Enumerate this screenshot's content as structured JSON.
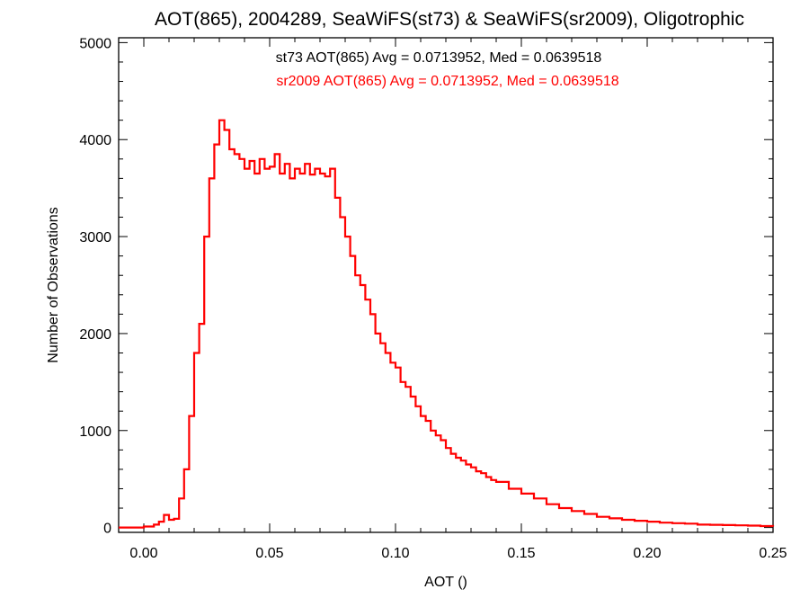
{
  "chart_data": {
    "type": "line",
    "step": true,
    "title": "AOT(865), 2004289, SeaWiFS(st73) & SeaWiFS(sr2009), Oligotrophic",
    "xlabel": "AOT ()",
    "ylabel": "Number of Observations",
    "xlim": [
      -0.01,
      0.25
    ],
    "ylim": [
      -50,
      5050
    ],
    "xticks": [
      0.0,
      0.05,
      0.1,
      0.15,
      0.2,
      0.25
    ],
    "xtick_labels": [
      "0.00",
      "0.05",
      "0.10",
      "0.15",
      "0.20",
      "0.25"
    ],
    "yticks": [
      0,
      1000,
      2000,
      3000,
      4000,
      5000
    ],
    "ytick_labels": [
      "0",
      "1000",
      "2000",
      "3000",
      "4000",
      "5000"
    ],
    "annotations": [
      {
        "text": "st73 AOT(865) Avg = 0.0713952, Med = 0.0639518",
        "color": "#000000"
      },
      {
        "text": "sr2009 AOT(865) Avg = 0.0713952, Med = 0.0639518",
        "color": "#ff0000"
      }
    ],
    "grid": false,
    "series": [
      {
        "color": "#ff0000",
        "x": [
          -0.01,
          0.0,
          0.004,
          0.006,
          0.008,
          0.01,
          0.012,
          0.014,
          0.016,
          0.018,
          0.02,
          0.022,
          0.024,
          0.026,
          0.028,
          0.03,
          0.032,
          0.034,
          0.036,
          0.038,
          0.04,
          0.042,
          0.044,
          0.046,
          0.048,
          0.05,
          0.052,
          0.054,
          0.056,
          0.058,
          0.06,
          0.062,
          0.064,
          0.066,
          0.068,
          0.07,
          0.072,
          0.074,
          0.076,
          0.078,
          0.08,
          0.082,
          0.084,
          0.086,
          0.088,
          0.09,
          0.092,
          0.094,
          0.096,
          0.098,
          0.1,
          0.102,
          0.104,
          0.106,
          0.108,
          0.11,
          0.112,
          0.114,
          0.116,
          0.118,
          0.12,
          0.122,
          0.124,
          0.126,
          0.128,
          0.13,
          0.132,
          0.134,
          0.136,
          0.138,
          0.14,
          0.145,
          0.15,
          0.155,
          0.16,
          0.165,
          0.17,
          0.175,
          0.18,
          0.185,
          0.19,
          0.195,
          0.2,
          0.205,
          0.21,
          0.215,
          0.22,
          0.225,
          0.23,
          0.235,
          0.24,
          0.245,
          0.25
        ],
        "values": [
          0,
          10,
          30,
          60,
          130,
          80,
          90,
          300,
          600,
          1150,
          1800,
          2100,
          3000,
          3600,
          3950,
          4200,
          4100,
          3900,
          3850,
          3800,
          3700,
          3780,
          3650,
          3800,
          3700,
          3720,
          3850,
          3650,
          3750,
          3600,
          3700,
          3650,
          3750,
          3640,
          3700,
          3650,
          3620,
          3700,
          3400,
          3200,
          3000,
          2800,
          2600,
          2500,
          2350,
          2200,
          2000,
          1900,
          1800,
          1700,
          1650,
          1500,
          1450,
          1350,
          1250,
          1150,
          1100,
          1000,
          950,
          900,
          820,
          760,
          720,
          690,
          650,
          620,
          580,
          560,
          520,
          490,
          470,
          400,
          350,
          300,
          240,
          200,
          170,
          140,
          110,
          95,
          80,
          70,
          60,
          50,
          45,
          40,
          30,
          28,
          25,
          22,
          20,
          15,
          10
        ]
      }
    ]
  }
}
